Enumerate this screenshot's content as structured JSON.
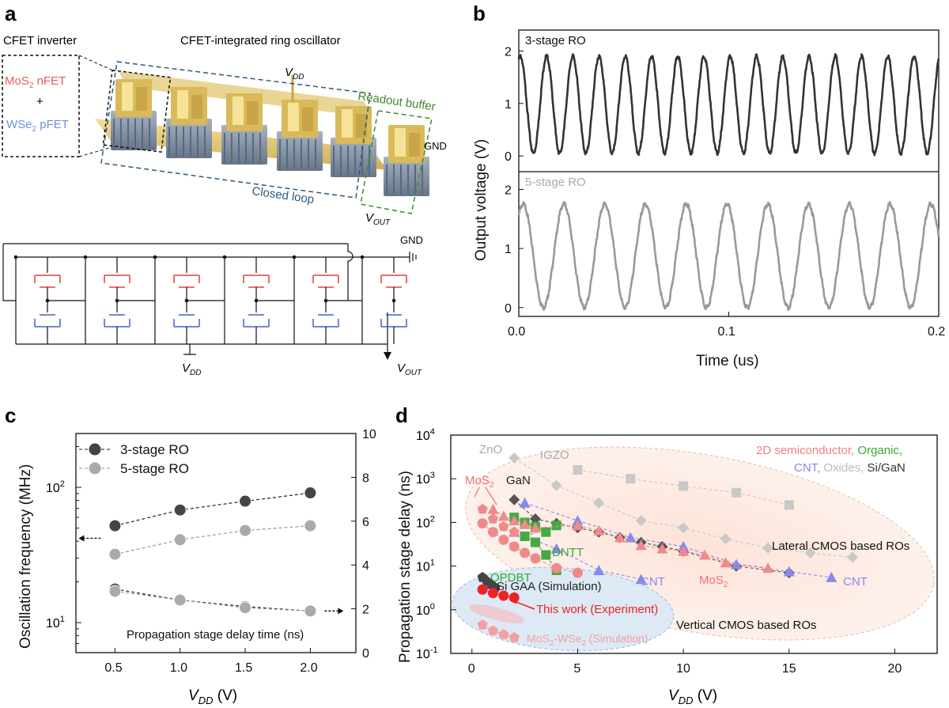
{
  "panels": {
    "a": "a",
    "b": "b",
    "c": "c",
    "d": "d"
  },
  "panel_a": {
    "cfet_inverter_title": "CFET inverter",
    "ring_title": "CFET-integrated ring oscillator",
    "mos2_nfet": "MoS",
    "mos2_sub": "2",
    "mos2_rest": " nFET",
    "plus": "+",
    "wse2_pfet": "WSe",
    "wse2_sub": "2",
    "wse2_rest": " pFET",
    "vdd_v": "V",
    "vdd_sub": "DD",
    "readout_buffer": "Readout buffer",
    "gnd": "GND",
    "closed_loop": "Closed loop",
    "vout_v": "V",
    "vout_sub": "OUT",
    "schematic_gnd": "GND",
    "schematic_vdd_v": "V",
    "schematic_vdd_sub": "DD",
    "schematic_vout_v": "V",
    "schematic_vout_sub": "OUT"
  },
  "chart_data": [
    {
      "panel": "b",
      "type": "line",
      "xlabel": "Time (us)",
      "ylabel": "Output voltage (V)",
      "xlim": [
        0,
        0.2
      ],
      "x_ticks": [
        "0.0",
        "0.1",
        "0.2"
      ],
      "subplots": [
        {
          "label": "3-stage RO",
          "ylim": [
            -0.3,
            2.4
          ],
          "y_ticks": [
            "0",
            "1",
            "2"
          ],
          "color": "#333333",
          "periods": 16,
          "vmin": 0.05,
          "vmax": 1.9
        },
        {
          "label": "5-stage RO",
          "ylim": [
            -0.15,
            2.3
          ],
          "y_ticks": [
            "0",
            "1",
            "2"
          ],
          "color": "#999999",
          "periods": 10.3,
          "vmin": 0.0,
          "vmax": 1.75
        }
      ]
    },
    {
      "panel": "c",
      "type": "line",
      "xlabel": "V",
      "xlabel_sub": "DD",
      "xlabel_unit": " (V)",
      "ylabel": "Oscillation frequency (MHz)",
      "xlim": [
        0.2,
        2.35
      ],
      "x_ticks": [
        "0.5",
        "1.0",
        "1.5",
        "2.0"
      ],
      "left_axis": {
        "scale": "log",
        "ylim": [
          6,
          250
        ],
        "ticks": [
          "10",
          "10"
        ],
        "tick_exps": [
          "1",
          "2"
        ]
      },
      "right_axis": {
        "ylim": [
          0,
          10
        ],
        "ticks": [
          "0",
          "2",
          "4",
          "6",
          "8",
          "10"
        ]
      },
      "annotation": "Propagation stage delay time (ns)",
      "legend": [
        "3-stage RO",
        "5-stage RO"
      ],
      "series": [
        {
          "name": "3-stage RO",
          "axis": "left",
          "color": "#444444",
          "x": [
            0.5,
            1.0,
            1.5,
            2.0
          ],
          "y": [
            52,
            68,
            79,
            91
          ]
        },
        {
          "name": "5-stage RO",
          "axis": "left",
          "color": "#aaaaaa",
          "x": [
            0.5,
            1.0,
            1.5,
            2.0
          ],
          "y": [
            32,
            41,
            48,
            52
          ]
        },
        {
          "name": "3-stage RO",
          "axis": "right",
          "color": "#444444",
          "x": [
            0.5,
            1.0,
            1.5,
            2.0
          ],
          "y": [
            2.9,
            2.4,
            2.1,
            1.9
          ]
        },
        {
          "name": "5-stage RO",
          "axis": "right",
          "color": "#aaaaaa",
          "x": [
            0.5,
            1.0,
            1.5,
            2.0
          ],
          "y": [
            2.8,
            2.4,
            2.05,
            1.9
          ]
        }
      ]
    },
    {
      "panel": "d",
      "type": "scatter",
      "ylabel": "Propagation stage delay (ns)",
      "xlabel": "V",
      "xlabel_sub": "DD",
      "xlabel_unit": " (V)",
      "xlim": [
        -1,
        22
      ],
      "x_ticks": [
        "0",
        "5",
        "10",
        "15",
        "20"
      ],
      "ylim_log": [
        0.1,
        10000
      ],
      "y_tick_exps": [
        "-1",
        "0",
        "1",
        "2",
        "3",
        "4"
      ],
      "legend_text": [
        "2D semiconductor,",
        " Organic,",
        "CNT,",
        " Oxides,",
        " Si/GaN"
      ],
      "legend_colors": [
        "#f08080",
        "#33aa33",
        "#8888ee",
        "#bbbbbb",
        "#333333"
      ],
      "labels": {
        "zno": "ZnO",
        "igzo": "IGZO",
        "mos2a": "MoS",
        "mos2a_sub": "2",
        "gan": "GaN",
        "dntt": "DNTT",
        "opdbt": "OPDBT",
        "cnt1": "CNT",
        "cnt2": "CNT",
        "mos2b": "MoS",
        "mos2b_sub": "2",
        "sigaa": "Si GAA (Simulation)",
        "thiswork": "This work (Experiment)",
        "sim_a": "MoS",
        "sim_sub1": "2",
        "sim_b": "-WSe",
        "sim_sub2": "2",
        "sim_c": " (Simulation)",
        "lateral": "Lateral CMOS based ROs",
        "vertical": "Vertical CMOS based ROs"
      },
      "series": [
        {
          "name": "ZnO",
          "color": "#c8c8c8",
          "marker": "diamond",
          "x": [
            2,
            4,
            6,
            8,
            10,
            12,
            14,
            16,
            18
          ],
          "y": [
            3000,
            700,
            280,
            110,
            75,
            42,
            26,
            20,
            16
          ]
        },
        {
          "name": "IGZO",
          "color": "#c8c8c8",
          "marker": "square",
          "x": [
            5,
            7.5,
            10,
            12.5,
            15
          ],
          "y": [
            1600,
            1000,
            680,
            480,
            250
          ]
        },
        {
          "name": "GaN",
          "color": "#555555",
          "marker": "diamond",
          "x": [
            2,
            3,
            4,
            5,
            6,
            7,
            8,
            9,
            10,
            12.5,
            15
          ],
          "y": [
            330,
            120,
            95,
            75,
            60,
            45,
            35,
            28,
            22,
            10,
            7
          ]
        },
        {
          "name": "CNT (a)",
          "color": "#8888ee",
          "marker": "triangle",
          "x": [
            2.5,
            5,
            7.5,
            10,
            12.5,
            15,
            17
          ],
          "y": [
            280,
            110,
            45,
            28,
            11,
            7.5,
            5.5
          ]
        },
        {
          "name": "CNT (b)",
          "color": "#8888ee",
          "marker": "triangle",
          "x": [
            2,
            4,
            6,
            8
          ],
          "y": [
            60,
            25,
            8,
            5
          ]
        },
        {
          "name": "Organic",
          "color": "#44aa44",
          "marker": "square",
          "x": [
            2,
            2.5,
            3,
            3.5,
            4,
            2.5,
            3,
            3.5,
            4
          ],
          "y": [
            130,
            100,
            80,
            60,
            85,
            48,
            35,
            18,
            8
          ]
        },
        {
          "name": "MoS2 (a)",
          "color": "#f08a8a",
          "marker": "triangle",
          "x": [
            1,
            1.5,
            2,
            2.5,
            3,
            5,
            6,
            7,
            8,
            9,
            10,
            11,
            12,
            14
          ],
          "y": [
            200,
            140,
            110,
            90,
            75,
            85,
            65,
            45,
            30,
            25,
            22,
            18,
            12,
            9
          ]
        },
        {
          "name": "MoS2 (b)",
          "color": "#f08a8a",
          "marker": "circle",
          "x": [
            0.5,
            1,
            1.5,
            2,
            2.5,
            3,
            4,
            5
          ],
          "y": [
            95,
            60,
            40,
            28,
            20,
            15,
            9,
            7
          ]
        },
        {
          "name": "MoS2 (c)",
          "color": "#f08a8a",
          "marker": "pentagon",
          "x": [
            0.5,
            1,
            1.5,
            2
          ],
          "y": [
            200,
            120,
            80,
            60
          ]
        },
        {
          "name": "Si GAA (Simulation)",
          "color": "#444444",
          "marker": "pentagon",
          "x": [
            0.5,
            0.7,
            0.9,
            1.1
          ],
          "y": [
            5.5,
            4.5,
            3.8,
            3.2
          ]
        },
        {
          "name": "This work (Experiment)",
          "color": "#ee2222",
          "marker": "circle",
          "x": [
            0.5,
            1,
            1.5,
            2
          ],
          "y": [
            2.9,
            2.4,
            2.1,
            1.9
          ]
        },
        {
          "name": "MoS2-WSe2 (Simulation)",
          "color": "#f4a0a0",
          "marker": "pentagon",
          "x": [
            0.5,
            1,
            1.5,
            2
          ],
          "y": [
            0.45,
            0.33,
            0.27,
            0.23
          ]
        }
      ]
    }
  ]
}
